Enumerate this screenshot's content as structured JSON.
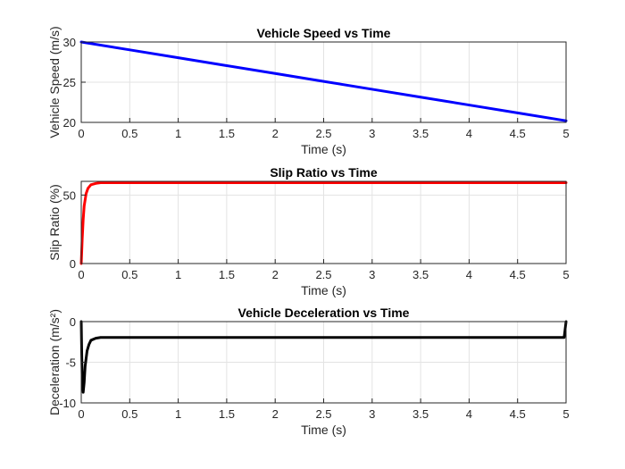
{
  "chart_data": [
    {
      "type": "line",
      "title": "Vehicle Speed vs Time",
      "xlabel": "Time (s)",
      "ylabel": "Vehicle Speed (m/s)",
      "xlim": [
        0,
        5
      ],
      "ylim": [
        20,
        30
      ],
      "xticks": [
        0,
        0.5,
        1,
        1.5,
        2,
        2.5,
        3,
        3.5,
        4,
        4.5,
        5
      ],
      "xtick_labels": [
        "0",
        "0.5",
        "1",
        "1.5",
        "2",
        "2.5",
        "3",
        "3.5",
        "4",
        "4.5",
        "5"
      ],
      "yticks": [
        20,
        25,
        30
      ],
      "ytick_labels": [
        "20",
        "25",
        "30"
      ],
      "grid": true,
      "series": [
        {
          "color": "#0000ff",
          "x": [
            0,
            0.5,
            1,
            1.5,
            2,
            2.5,
            3,
            3.5,
            4,
            4.5,
            5
          ],
          "y": [
            30,
            29.02,
            28.04,
            27.06,
            26.08,
            25.1,
            24.12,
            23.14,
            22.16,
            21.18,
            20.2
          ]
        }
      ]
    },
    {
      "type": "line",
      "title": "Slip Ratio vs Time",
      "xlabel": "Time (s)",
      "ylabel": "Slip Ratio (%)",
      "xlim": [
        0,
        5
      ],
      "ylim": [
        0,
        60
      ],
      "xticks": [
        0,
        0.5,
        1,
        1.5,
        2,
        2.5,
        3,
        3.5,
        4,
        4.5,
        5
      ],
      "xtick_labels": [
        "0",
        "0.5",
        "1",
        "1.5",
        "2",
        "2.5",
        "3",
        "3.5",
        "4",
        "4.5",
        "5"
      ],
      "yticks": [
        0,
        50
      ],
      "ytick_labels": [
        "0",
        "50"
      ],
      "grid": true,
      "series": [
        {
          "color": "#ff0000",
          "x": [
            0,
            0.01,
            0.02,
            0.03,
            0.05,
            0.07,
            0.1,
            0.15,
            0.2,
            0.3,
            1,
            2,
            3,
            4,
            5
          ],
          "y": [
            0,
            18,
            32,
            42,
            51,
            55,
            57.5,
            58.5,
            59,
            59,
            59,
            59,
            59,
            59,
            59
          ]
        }
      ]
    },
    {
      "type": "line",
      "title": "Vehicle Deceleration vs Time",
      "xlabel": "Time (s)",
      "ylabel": "Deceleration (m/s²)",
      "xlim": [
        0,
        5
      ],
      "ylim": [
        -10,
        0
      ],
      "xticks": [
        0,
        0.5,
        1,
        1.5,
        2,
        2.5,
        3,
        3.5,
        4,
        4.5,
        5
      ],
      "xtick_labels": [
        "0",
        "0.5",
        "1",
        "1.5",
        "2",
        "2.5",
        "3",
        "3.5",
        "4",
        "4.5",
        "5"
      ],
      "yticks": [
        -10,
        -5,
        0
      ],
      "ytick_labels": [
        "-10",
        "-5",
        "0"
      ],
      "grid": true,
      "series": [
        {
          "color": "#000000",
          "x": [
            0,
            0.005,
            0.01,
            0.02,
            0.03,
            0.04,
            0.06,
            0.08,
            0.1,
            0.15,
            0.2,
            0.3,
            1,
            2,
            3,
            4,
            4.98,
            4.99,
            5
          ],
          "y": [
            0,
            -4,
            -7,
            -8.7,
            -7.5,
            -5.5,
            -3.6,
            -2.8,
            -2.3,
            -2.05,
            -1.95,
            -1.95,
            -1.95,
            -1.95,
            -1.95,
            -1.95,
            -1.95,
            -1,
            0
          ]
        }
      ]
    }
  ]
}
